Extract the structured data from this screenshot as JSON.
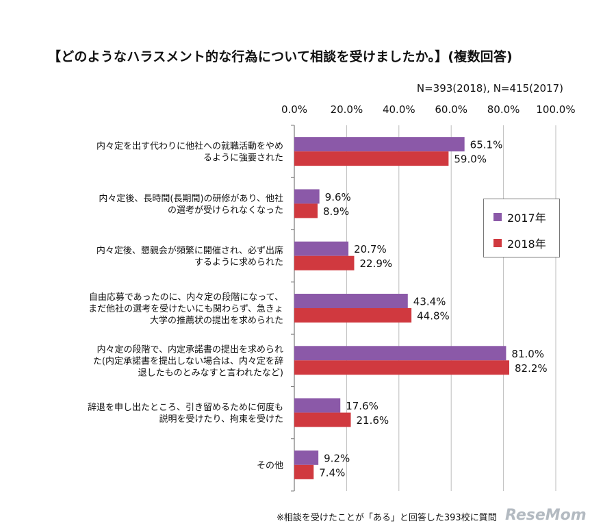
{
  "title": "【どのようなハラスメント的な行為について相談を受けましたか。】(複数回答)",
  "subtitle": "N=393(2018), N=415(2017)",
  "footnote": "※相談を受けたことが「ある」と回答した393校に質問",
  "watermark": "ReseMom",
  "chart_data": {
    "type": "bar",
    "orientation": "horizontal",
    "xlim": [
      0,
      100
    ],
    "ticks": [
      "0.0%",
      "20.0%",
      "40.0%",
      "60.0%",
      "80.0%",
      "100.0%"
    ],
    "tick_values": [
      0,
      20,
      40,
      60,
      80,
      100
    ],
    "categories": [
      [
        "内々定を出す代わりに他社への就職活動をやめ",
        "るように強要された"
      ],
      [
        "内々定後、長時間(長期間)の研修があり、他社",
        "の選考が受けられなくなった"
      ],
      [
        "内々定後、懇親会が頻繁に開催され、必ず出席",
        "するように求められた"
      ],
      [
        "自由応募であったのに、内々定の段階になって、",
        "まだ他社の選考を受けたいにも関わらず、急きょ",
        "大学の推薦状の提出を求められた"
      ],
      [
        "内々定の段階で、内定承諾書の提出を求められ",
        "た(内定承諾書を提出しない場合は、内々定を辞",
        "退したものとみなすと言われたなど)"
      ],
      [
        "辞退を申し出たところ、引き留めるために何度も",
        "説明を受けたり、拘束を受けた"
      ],
      [
        "その他"
      ]
    ],
    "series": [
      {
        "name": "2017年",
        "color": "#8B59A8",
        "values": [
          65.1,
          9.6,
          20.7,
          43.4,
          81.0,
          17.6,
          9.2
        ],
        "labels": [
          "65.1%",
          "9.6%",
          "20.7%",
          "43.4%",
          "81.0%",
          "17.6%",
          "9.2%"
        ]
      },
      {
        "name": "2018年",
        "color": "#D0393F",
        "values": [
          59.0,
          8.9,
          22.9,
          44.8,
          82.2,
          21.6,
          7.4
        ],
        "labels": [
          "59.0%",
          "8.9%",
          "22.9%",
          "44.8%",
          "82.2%",
          "21.6%",
          "7.4%"
        ]
      }
    ],
    "legend_position": "right"
  }
}
